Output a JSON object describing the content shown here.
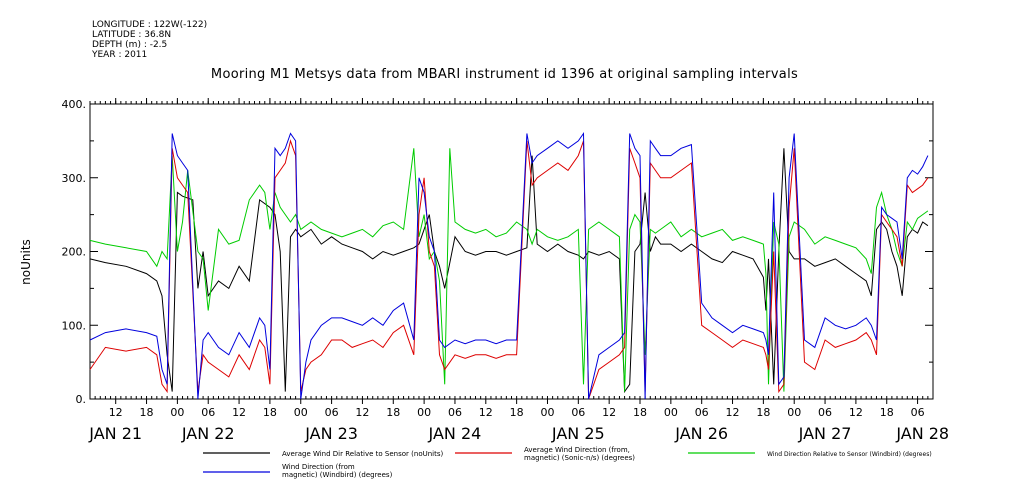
{
  "meta": {
    "longitude": "LONGITUDE : 122W(-122)",
    "latitude": "LATITUDE : 36.8N",
    "depth": "DEPTH (m) : -2.5",
    "year": "YEAR : 2011"
  },
  "colors": {
    "avg_wind_dir_rel": "#000000",
    "avg_wind_direction": "#dd0000",
    "wind_dir_rel_windbird": "#00cc00",
    "wind_direction_windbird": "#0000dd"
  },
  "chart_data": {
    "type": "line",
    "title": "Mooring M1 Metsys data from MBARI instrument id 1396 at original sampling intervals",
    "ylabel": "noUnits",
    "xlabel": "",
    "ylim": [
      0,
      400
    ],
    "yticks": [
      "0.",
      "100.",
      "200.",
      "300.",
      "400."
    ],
    "x_unit": "hours since JAN 21 00:00 (2011)",
    "xlim": [
      7,
      171
    ],
    "hour_ticks": [
      {
        "x": 12,
        "label": "12"
      },
      {
        "x": 18,
        "label": "18"
      },
      {
        "x": 24,
        "label": "00"
      },
      {
        "x": 30,
        "label": "06"
      },
      {
        "x": 36,
        "label": "12"
      },
      {
        "x": 42,
        "label": "18"
      },
      {
        "x": 48,
        "label": "00"
      },
      {
        "x": 54,
        "label": "06"
      },
      {
        "x": 60,
        "label": "12"
      },
      {
        "x": 66,
        "label": "18"
      },
      {
        "x": 72,
        "label": "00"
      },
      {
        "x": 78,
        "label": "06"
      },
      {
        "x": 84,
        "label": "12"
      },
      {
        "x": 90,
        "label": "18"
      },
      {
        "x": 96,
        "label": "00"
      },
      {
        "x": 102,
        "label": "06"
      },
      {
        "x": 108,
        "label": "12"
      },
      {
        "x": 114,
        "label": "18"
      },
      {
        "x": 120,
        "label": "00"
      },
      {
        "x": 126,
        "label": "06"
      },
      {
        "x": 132,
        "label": "12"
      },
      {
        "x": 138,
        "label": "18"
      },
      {
        "x": 144,
        "label": "00"
      },
      {
        "x": 150,
        "label": "06"
      },
      {
        "x": 156,
        "label": "12"
      },
      {
        "x": 162,
        "label": "18"
      },
      {
        "x": 168,
        "label": "06"
      }
    ],
    "day_ticks": [
      {
        "x": 12,
        "label": "JAN 21"
      },
      {
        "x": 30,
        "label": "JAN 22"
      },
      {
        "x": 54,
        "label": "JAN 23"
      },
      {
        "x": 78,
        "label": "JAN 24"
      },
      {
        "x": 102,
        "label": "JAN 25"
      },
      {
        "x": 126,
        "label": "JAN 26"
      },
      {
        "x": 150,
        "label": "JAN 27"
      },
      {
        "x": 169,
        "label": "JAN 28"
      }
    ],
    "series": [
      {
        "name": "Average Wind Dir Relative to Sensor (noUnits)",
        "x": [
          7,
          10,
          14,
          18,
          20,
          21,
          22,
          23,
          24,
          25,
          27,
          28,
          29,
          30,
          32,
          34,
          36,
          38,
          40,
          42,
          43,
          44,
          45,
          46,
          47,
          48,
          50,
          52,
          54,
          56,
          58,
          60,
          62,
          64,
          66,
          68,
          70,
          71,
          72,
          73,
          74,
          75,
          76,
          78,
          80,
          82,
          84,
          86,
          88,
          90,
          92,
          93,
          94,
          96,
          98,
          100,
          102,
          103,
          104,
          106,
          108,
          110,
          111,
          112,
          113,
          114,
          115,
          116,
          117,
          118,
          120,
          122,
          124,
          126,
          128,
          130,
          132,
          134,
          136,
          138,
          138.5,
          139,
          140,
          141,
          142,
          143,
          144,
          146,
          148,
          150,
          152,
          154,
          156,
          158,
          159,
          160,
          161,
          162,
          163,
          164,
          165,
          166,
          167,
          168,
          169,
          170
        ],
        "y": [
          190,
          185,
          180,
          170,
          160,
          140,
          60,
          10,
          280,
          275,
          270,
          150,
          200,
          140,
          160,
          150,
          180,
          160,
          270,
          260,
          250,
          200,
          10,
          220,
          230,
          220,
          230,
          210,
          220,
          210,
          205,
          200,
          190,
          200,
          195,
          200,
          205,
          210,
          230,
          250,
          200,
          180,
          150,
          220,
          200,
          195,
          200,
          200,
          195,
          200,
          205,
          330,
          210,
          200,
          210,
          200,
          195,
          190,
          200,
          195,
          200,
          190,
          10,
          20,
          200,
          210,
          280,
          200,
          220,
          210,
          210,
          200,
          210,
          200,
          190,
          185,
          200,
          195,
          190,
          165,
          120,
          190,
          20,
          200,
          340,
          200,
          190,
          190,
          180,
          185,
          190,
          180,
          170,
          160,
          140,
          230,
          240,
          230,
          200,
          180,
          140,
          220,
          230,
          225,
          240,
          235
        ]
      },
      {
        "name": "Average Wind Direction (from, magnetic) (Sonic-n/s) (degrees)",
        "x": [
          7,
          10,
          14,
          18,
          20,
          21,
          22,
          23,
          24,
          25,
          26,
          28,
          29,
          30,
          32,
          34,
          36,
          38,
          40,
          41,
          42,
          43,
          44,
          45,
          46,
          47,
          48,
          49,
          50,
          52,
          54,
          56,
          58,
          60,
          62,
          64,
          66,
          68,
          70,
          71,
          72,
          73,
          74,
          75,
          76,
          78,
          80,
          82,
          84,
          86,
          88,
          90,
          92,
          93,
          94,
          96,
          98,
          100,
          102,
          103,
          104,
          106,
          108,
          110,
          111,
          112,
          113,
          114,
          115,
          116,
          117,
          118,
          120,
          122,
          124,
          126,
          128,
          130,
          132,
          134,
          136,
          138,
          138.5,
          139,
          140,
          141,
          142,
          143,
          144,
          146,
          148,
          150,
          152,
          154,
          156,
          158,
          159,
          160,
          161,
          162,
          163,
          164,
          165,
          166,
          167,
          168,
          169,
          170
        ],
        "y": [
          40,
          70,
          65,
          70,
          60,
          20,
          10,
          340,
          300,
          290,
          280,
          10,
          60,
          50,
          40,
          30,
          60,
          40,
          80,
          70,
          20,
          300,
          310,
          320,
          350,
          330,
          10,
          40,
          50,
          60,
          80,
          80,
          70,
          75,
          80,
          70,
          90,
          100,
          60,
          250,
          300,
          200,
          180,
          60,
          40,
          60,
          55,
          60,
          60,
          55,
          60,
          60,
          350,
          290,
          300,
          310,
          320,
          310,
          330,
          350,
          0,
          40,
          50,
          60,
          70,
          340,
          320,
          300,
          10,
          320,
          310,
          300,
          300,
          310,
          320,
          100,
          90,
          80,
          70,
          80,
          75,
          70,
          60,
          40,
          200,
          10,
          20,
          260,
          340,
          50,
          40,
          80,
          70,
          75,
          80,
          90,
          80,
          60,
          250,
          240,
          230,
          220,
          180,
          290,
          280,
          285,
          290,
          300
        ]
      },
      {
        "name": "Wind Direction Relative to Sensor (Windbird) (degrees)",
        "x": [
          7,
          10,
          14,
          18,
          20,
          21,
          22,
          23,
          24,
          25,
          26,
          28,
          29,
          30,
          32,
          34,
          36,
          38,
          40,
          41,
          42,
          43,
          44,
          45,
          46,
          47,
          48,
          50,
          52,
          54,
          56,
          58,
          60,
          62,
          64,
          66,
          68,
          70,
          71,
          72,
          73,
          74,
          75,
          76,
          77,
          78,
          80,
          82,
          84,
          86,
          88,
          90,
          92,
          93,
          94,
          96,
          98,
          100,
          102,
          103,
          104,
          106,
          108,
          110,
          111,
          112,
          113,
          114,
          115,
          116,
          117,
          118,
          120,
          122,
          124,
          126,
          128,
          130,
          132,
          134,
          136,
          138,
          138.5,
          139,
          140,
          141,
          142,
          143,
          144,
          146,
          148,
          150,
          152,
          154,
          156,
          158,
          159,
          160,
          161,
          162,
          163,
          164,
          165,
          166,
          167,
          168,
          169,
          170
        ],
        "y": [
          215,
          210,
          205,
          200,
          180,
          200,
          190,
          330,
          200,
          240,
          310,
          200,
          190,
          120,
          230,
          210,
          215,
          270,
          290,
          280,
          230,
          280,
          260,
          250,
          240,
          250,
          230,
          240,
          230,
          225,
          220,
          225,
          230,
          220,
          235,
          240,
          230,
          340,
          220,
          250,
          190,
          200,
          160,
          20,
          340,
          240,
          230,
          225,
          230,
          220,
          225,
          240,
          230,
          210,
          230,
          220,
          215,
          220,
          230,
          20,
          230,
          240,
          230,
          220,
          10,
          230,
          250,
          240,
          60,
          230,
          225,
          230,
          240,
          220,
          230,
          220,
          225,
          230,
          215,
          220,
          215,
          210,
          170,
          20,
          240,
          210,
          10,
          220,
          240,
          230,
          210,
          220,
          215,
          210,
          205,
          190,
          170,
          260,
          280,
          250,
          230,
          200,
          180,
          240,
          230,
          245,
          250,
          255
        ]
      },
      {
        "name": "Wind Direction (from, magnetic) (Windbird) (degrees)",
        "x": [
          7,
          10,
          14,
          18,
          20,
          21,
          22,
          23,
          24,
          25,
          26,
          28,
          29,
          30,
          32,
          34,
          36,
          38,
          40,
          41,
          42,
          43,
          44,
          45,
          46,
          47,
          48,
          49,
          50,
          52,
          54,
          56,
          58,
          60,
          62,
          64,
          66,
          68,
          70,
          71,
          72,
          73,
          74,
          75,
          76,
          78,
          80,
          82,
          84,
          86,
          88,
          90,
          92,
          93,
          94,
          96,
          98,
          100,
          102,
          103,
          104,
          106,
          108,
          110,
          111,
          112,
          113,
          114,
          115,
          116,
          117,
          118,
          120,
          122,
          124,
          126,
          128,
          130,
          132,
          134,
          136,
          138,
          138.5,
          139,
          140,
          141,
          142,
          143,
          144,
          146,
          148,
          150,
          152,
          154,
          156,
          158,
          159,
          160,
          161,
          162,
          163,
          164,
          165,
          166,
          167,
          168,
          169,
          170
        ],
        "y": [
          80,
          90,
          95,
          90,
          85,
          40,
          20,
          360,
          330,
          320,
          310,
          0,
          80,
          90,
          70,
          60,
          90,
          70,
          110,
          100,
          40,
          340,
          330,
          340,
          360,
          350,
          0,
          50,
          80,
          100,
          110,
          110,
          105,
          100,
          110,
          100,
          120,
          130,
          80,
          300,
          280,
          220,
          200,
          80,
          70,
          80,
          75,
          80,
          80,
          75,
          80,
          80,
          360,
          320,
          330,
          340,
          350,
          340,
          350,
          360,
          0,
          60,
          70,
          80,
          90,
          360,
          340,
          330,
          0,
          350,
          340,
          330,
          330,
          340,
          345,
          130,
          110,
          100,
          90,
          100,
          95,
          90,
          80,
          60,
          280,
          20,
          30,
          300,
          360,
          80,
          70,
          110,
          100,
          95,
          100,
          110,
          100,
          80,
          260,
          250,
          245,
          240,
          190,
          300,
          310,
          305,
          315,
          330
        ]
      }
    ],
    "legend": {
      "placement": "bottom",
      "lines": [
        {
          "name_lines": [
            "Average Wind Dir Relative to Sensor (noUnits)"
          ]
        },
        {
          "name_lines": [
            "Average Wind Direction (from,",
            "magnetic) (Sonic-n/s) (degrees)"
          ]
        },
        {
          "name_lines": [
            "Wind Direction Relative to Sensor (Windbird) (degrees)"
          ]
        },
        {
          "name_lines": [
            "Wind Direction (from",
            "magnetic) (Windbird) (degrees)"
          ]
        }
      ]
    }
  }
}
